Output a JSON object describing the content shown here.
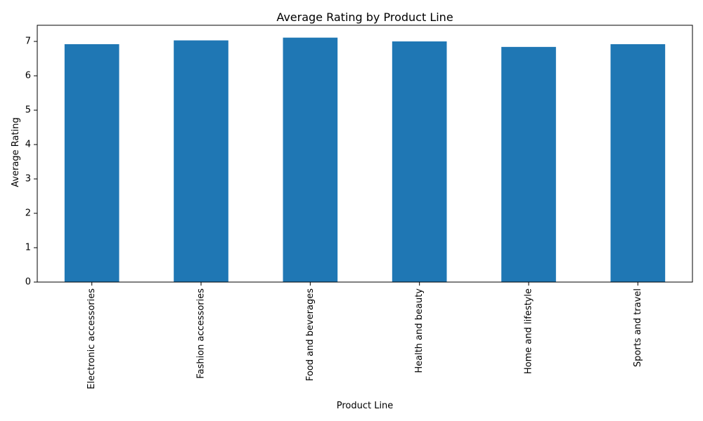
{
  "chart_data": {
    "type": "bar",
    "title": "Average Rating by Product Line",
    "xlabel": "Product Line",
    "ylabel": "Average Rating",
    "categories": [
      "Electronic accessories",
      "Fashion accessories",
      "Food and beverages",
      "Health and beauty",
      "Home and lifestyle",
      "Sports and travel"
    ],
    "values": [
      6.92,
      7.03,
      7.11,
      7.0,
      6.84,
      6.92
    ],
    "yticks": [
      0,
      1,
      2,
      3,
      4,
      5,
      6,
      7
    ],
    "ylim": [
      0,
      7.47
    ],
    "grid": false,
    "bar_color": "#1f77b4",
    "x_tick_rotation": 90
  }
}
